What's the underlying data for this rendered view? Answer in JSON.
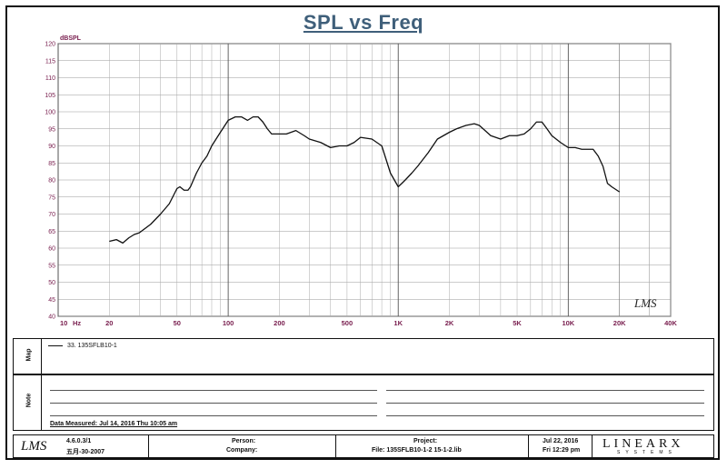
{
  "chart_data": {
    "type": "line",
    "title": "SPL vs Freq",
    "ylabel": "dBSPL",
    "xlabel": "Hz",
    "x_scale": "log",
    "xlim": [
      10,
      40000
    ],
    "ylim": [
      40,
      120
    ],
    "yticks": [
      40,
      45,
      50,
      55,
      60,
      65,
      70,
      75,
      80,
      85,
      90,
      95,
      100,
      105,
      110,
      115,
      120
    ],
    "xtick_labels": [
      {
        "value": 10,
        "label": "10"
      },
      {
        "value": 20,
        "label": "20"
      },
      {
        "value": 50,
        "label": "50"
      },
      {
        "value": 100,
        "label": "100"
      },
      {
        "value": 200,
        "label": "200"
      },
      {
        "value": 500,
        "label": "500"
      },
      {
        "value": 1000,
        "label": "1K"
      },
      {
        "value": 2000,
        "label": "2K"
      },
      {
        "value": 5000,
        "label": "5K"
      },
      {
        "value": 10000,
        "label": "10K"
      },
      {
        "value": 20000,
        "label": "20K"
      },
      {
        "value": 40000,
        "label": "40K"
      }
    ],
    "grid": true,
    "series": [
      {
        "name": "33. 135SFLB10-1",
        "x": [
          20,
          22,
          24,
          26,
          28,
          30,
          35,
          40,
          45,
          50,
          52,
          55,
          58,
          60,
          65,
          70,
          75,
          80,
          90,
          100,
          110,
          120,
          130,
          140,
          150,
          160,
          170,
          180,
          190,
          200,
          220,
          250,
          280,
          300,
          350,
          400,
          450,
          500,
          550,
          600,
          700,
          800,
          900,
          1000,
          1050,
          1100,
          1200,
          1300,
          1500,
          1700,
          2000,
          2200,
          2500,
          2800,
          3000,
          3500,
          4000,
          4500,
          5000,
          5500,
          6000,
          6500,
          7000,
          7500,
          8000,
          9000,
          10000,
          11000,
          12000,
          13000,
          14000,
          15000,
          16000,
          17000,
          18000,
          20000
        ],
        "y": [
          62,
          62.5,
          61.5,
          63,
          64,
          64.5,
          67,
          70,
          73,
          77.5,
          78,
          77,
          77,
          78,
          82,
          85,
          87,
          90,
          94,
          97.5,
          98.5,
          98.5,
          97.5,
          98.5,
          98.5,
          97,
          95,
          93.5,
          93.5,
          93.5,
          93.5,
          94.5,
          93,
          92,
          91,
          89.5,
          90,
          90,
          91,
          92.5,
          92,
          90,
          82,
          78,
          79,
          80,
          82,
          84,
          88,
          92,
          94,
          95,
          96,
          96.5,
          96,
          93,
          92,
          93,
          93,
          93.5,
          95,
          97,
          97,
          95,
          93,
          91,
          89.5,
          89.5,
          89,
          89,
          89,
          87,
          84,
          79,
          78,
          76.5
        ]
      }
    ],
    "legend_position": "bottom-left",
    "watermark": "LMS"
  },
  "map_panel": {
    "label": "Map",
    "legend_entry": "33. 135SFLB10-1"
  },
  "note_panel": {
    "label": "Note",
    "data_measured": "Data Measured: Jul 14, 2016  Thu 10:05 am"
  },
  "footer": {
    "logo": "LMS",
    "version": "4.6.0.3/1",
    "date_code": "五月-30-2007",
    "person_label": "Person:",
    "company_label": "Company:",
    "project_label": "Project:",
    "file_label": "File: 135SFLB10-1-2 15-1-2.lib",
    "date_line1": "Jul 22, 2016",
    "date_line2": "Fri 12:29 pm",
    "brand": "LINEARX",
    "brand_sub": "SYSTEMS"
  }
}
